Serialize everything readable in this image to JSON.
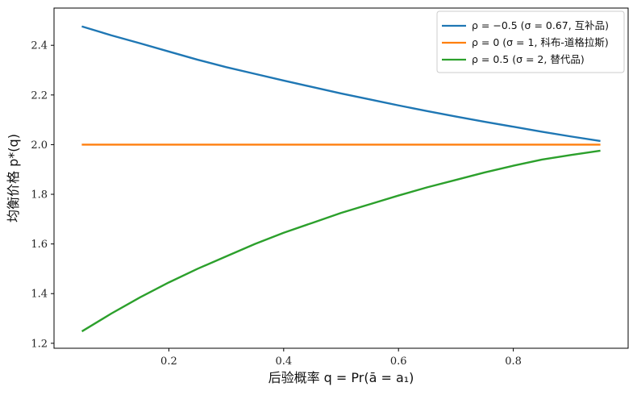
{
  "chart_data": {
    "type": "line",
    "title": "",
    "xlabel": "后验概率 q = Pr(ā = a₁)",
    "ylabel": "均衡价格 p*(q)",
    "xlim": [
      0.0,
      1.0
    ],
    "ylim": [
      1.18,
      2.55
    ],
    "xticks": [
      0.2,
      0.4,
      0.6,
      0.8
    ],
    "xtick_labels": [
      "0.2",
      "0.4",
      "0.6",
      "0.8"
    ],
    "yticks": [
      1.2,
      1.4,
      1.6,
      1.8,
      2.0,
      2.2,
      2.4
    ],
    "ytick_labels": [
      "1.2",
      "1.4",
      "1.6",
      "1.8",
      "2.0",
      "2.2",
      "2.4"
    ],
    "grid": false,
    "legend_position": "top-right",
    "x": [
      0.05,
      0.1,
      0.15,
      0.2,
      0.25,
      0.3,
      0.35,
      0.4,
      0.45,
      0.5,
      0.55,
      0.6,
      0.65,
      0.7,
      0.75,
      0.8,
      0.85,
      0.9,
      0.95
    ],
    "series": [
      {
        "name": "ρ = −0.5 (σ = 0.67, 互补品)",
        "color": "#1f77b4",
        "values": [
          2.475,
          2.44,
          2.408,
          2.375,
          2.342,
          2.312,
          2.285,
          2.258,
          2.232,
          2.206,
          2.182,
          2.158,
          2.135,
          2.113,
          2.092,
          2.072,
          2.052,
          2.033,
          2.015
        ]
      },
      {
        "name": "ρ = 0 (σ = 1, 科布-道格拉斯)",
        "color": "#ff7f0e",
        "values": [
          2.0,
          2.0,
          2.0,
          2.0,
          2.0,
          2.0,
          2.0,
          2.0,
          2.0,
          2.0,
          2.0,
          2.0,
          2.0,
          2.0,
          2.0,
          2.0,
          2.0,
          2.0,
          2.0
        ]
      },
      {
        "name": "ρ = 0.5 (σ = 2, 替代品)",
        "color": "#2ca02c",
        "values": [
          1.25,
          1.32,
          1.385,
          1.445,
          1.5,
          1.55,
          1.6,
          1.645,
          1.685,
          1.725,
          1.76,
          1.795,
          1.828,
          1.858,
          1.888,
          1.915,
          1.94,
          1.958,
          1.975
        ]
      }
    ]
  }
}
